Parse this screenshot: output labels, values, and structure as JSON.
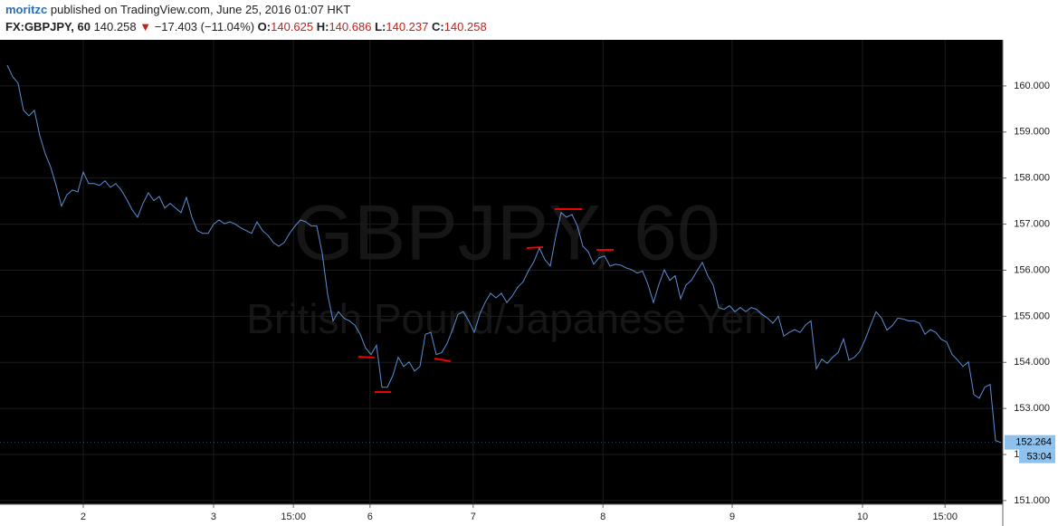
{
  "header": {
    "user": "moritzc",
    "published": "published on TradingView.com, June 25, 2016 01:07 HKT",
    "symbol": "FX:GBPJPY, 60",
    "last": "140.258",
    "change": "−17.403 (−11.04%)",
    "o_label": "O:",
    "o": "140.625",
    "h_label": "H:",
    "h": "140.686",
    "l_label": "L:",
    "l": "140.237",
    "c_label": "C:",
    "c": "140.258"
  },
  "chart_data": {
    "type": "line",
    "watermark": "GBPJPY, 60",
    "watermark_sub": "British Pound/Japanese Yen",
    "series": [
      {
        "name": "GBPJPY",
        "color": "#5b8fd4",
        "values": [
          160.45,
          160.2,
          160.06,
          159.47,
          159.35,
          159.47,
          158.92,
          158.53,
          158.24,
          157.84,
          157.39,
          157.64,
          157.74,
          157.7,
          158.13,
          157.88,
          157.88,
          157.84,
          157.94,
          157.8,
          157.88,
          157.74,
          157.54,
          157.31,
          157.15,
          157.45,
          157.68,
          157.51,
          157.6,
          157.35,
          157.45,
          157.35,
          157.25,
          157.58,
          157.15,
          156.86,
          156.8,
          156.8,
          157.0,
          157.09,
          157.01,
          157.05,
          157.0,
          156.92,
          156.86,
          156.8,
          157.05,
          156.86,
          156.76,
          156.6,
          156.52,
          156.6,
          156.8,
          156.96,
          157.09,
          157.05,
          156.96,
          156.96,
          156.37,
          155.48,
          154.9,
          155.1,
          154.96,
          154.9,
          154.81,
          154.61,
          154.31,
          154.17,
          154.37,
          153.46,
          153.46,
          153.71,
          154.11,
          153.91,
          154.01,
          153.81,
          153.91,
          154.61,
          154.65,
          154.17,
          154.21,
          154.41,
          154.71,
          155.04,
          155.1,
          154.9,
          154.65,
          155.04,
          155.3,
          155.5,
          155.4,
          155.5,
          155.3,
          155.44,
          155.63,
          155.75,
          155.99,
          156.19,
          156.48,
          156.23,
          156.09,
          156.73,
          157.25,
          157.15,
          157.21,
          156.96,
          156.52,
          156.4,
          156.13,
          156.27,
          156.31,
          156.09,
          156.13,
          156.11,
          156.05,
          156.01,
          155.94,
          155.98,
          155.69,
          155.3,
          155.69,
          156.01,
          155.78,
          155.88,
          155.38,
          155.68,
          155.78,
          155.98,
          156.17,
          155.88,
          155.68,
          155.19,
          155.15,
          155.23,
          155.1,
          155.19,
          155.1,
          155.19,
          155.15,
          155.04,
          154.96,
          154.85,
          155.0,
          154.57,
          154.65,
          154.71,
          154.65,
          154.81,
          154.9,
          153.86,
          154.07,
          153.98,
          154.11,
          154.21,
          154.51,
          154.05,
          154.11,
          154.24,
          154.5,
          154.81,
          155.1,
          154.96,
          154.7,
          154.8,
          154.96,
          154.94,
          154.9,
          154.9,
          154.85,
          154.61,
          154.71,
          154.65,
          154.5,
          154.44,
          154.17,
          154.05,
          153.91,
          154.01,
          153.3,
          153.22,
          153.46,
          153.52,
          152.3,
          152.26
        ]
      }
    ],
    "xlim": [
      -1.33,
      183.33
    ],
    "xticks": [
      {
        "value": 14,
        "label": "2"
      },
      {
        "value": 38,
        "label": "3"
      },
      {
        "value": 52.7,
        "label": "15:00"
      },
      {
        "value": 66.8,
        "label": "6"
      },
      {
        "value": 85.8,
        "label": "7"
      },
      {
        "value": 109.7,
        "label": "8"
      },
      {
        "value": 133.5,
        "label": "9"
      },
      {
        "value": 157.5,
        "label": "10"
      },
      {
        "value": 172.7,
        "label": "15:00"
      }
    ],
    "ylim": [
      150.92,
      161.0
    ],
    "yticks": [
      {
        "value": 151,
        "label": "151.000"
      },
      {
        "value": 152,
        "label": "152.000"
      },
      {
        "value": 153,
        "label": "153.000"
      },
      {
        "value": 154,
        "label": "154.000"
      },
      {
        "value": 155,
        "label": "155.000"
      },
      {
        "value": 156,
        "label": "156.000"
      },
      {
        "value": 157,
        "label": "157.000"
      },
      {
        "value": 158,
        "label": "158.000"
      },
      {
        "value": 159,
        "label": "159.000"
      },
      {
        "value": 160,
        "label": "160.000"
      }
    ],
    "last_price": {
      "value": 152.264,
      "label": "152.264"
    },
    "countdown": "53:04",
    "grid": true
  }
}
